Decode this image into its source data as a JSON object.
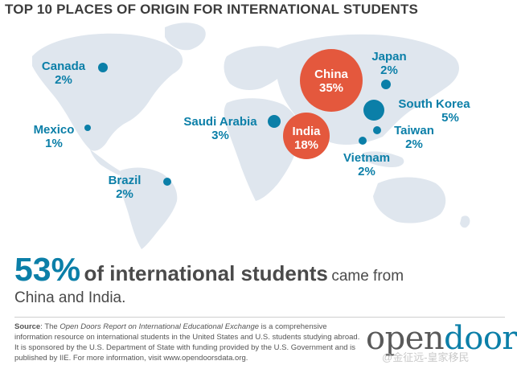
{
  "title": "TOP 10 PLACES OF ORIGIN FOR INTERNATIONAL STUDENTS",
  "colors": {
    "blue": "#0b7fa8",
    "red": "#e4583d",
    "land": "#dfe6ee",
    "text_gray": "#4a4a4a"
  },
  "places": [
    {
      "country": "Canada",
      "share": "2%",
      "value": 2
    },
    {
      "country": "Mexico",
      "share": "1%",
      "value": 1
    },
    {
      "country": "Brazil",
      "share": "2%",
      "value": 2
    },
    {
      "country": "Saudi Arabia",
      "share": "3%",
      "value": 3
    },
    {
      "country": "China",
      "share": "35%",
      "value": 35
    },
    {
      "country": "India",
      "share": "18%",
      "value": 18
    },
    {
      "country": "Japan",
      "share": "2%",
      "value": 2
    },
    {
      "country": "South Korea",
      "share": "5%",
      "value": 5
    },
    {
      "country": "Taiwan",
      "share": "2%",
      "value": 2
    },
    {
      "country": "Vietnam",
      "share": "2%",
      "value": 2
    }
  ],
  "headline": {
    "percent": "53%",
    "bold_text": "of international students",
    "tail": "came from",
    "line2": "China and India."
  },
  "source": {
    "label": "Source",
    "intro": ": The ",
    "report": "Open Doors Report on International Educational Exchange",
    "body": " is a comprehensive information resource on international students in the United States and U.S. students studying abroad. It is sponsored by the U.S. Department of State with funding provided by the U.S. Government and is published by IIE. For more information, visit www.opendoorsdata.org."
  },
  "logo": {
    "part1": "open",
    "part2": "doors",
    "mark": "®"
  },
  "watermark": "@金征远-皇家移民"
}
